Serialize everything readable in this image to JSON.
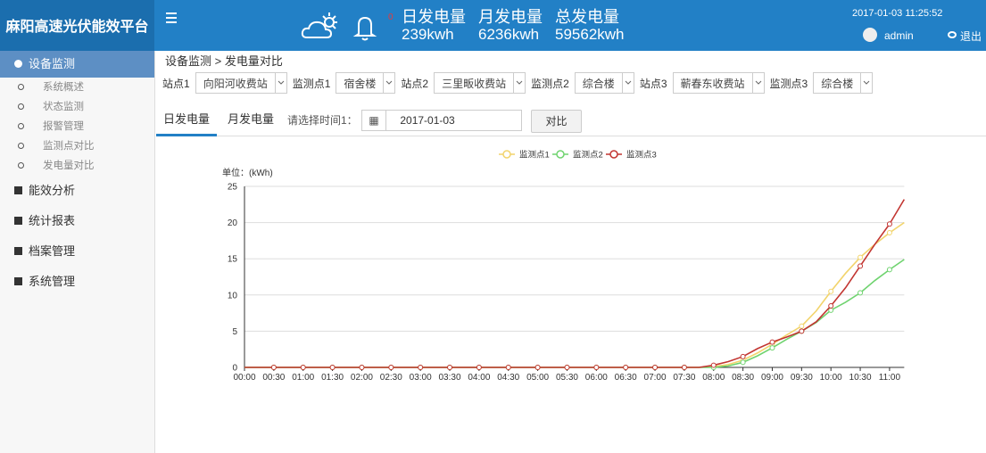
{
  "header": {
    "title": "麻阳高速光伏能效平台",
    "alert_count": "0",
    "stats": [
      {
        "label": "日发电量",
        "value": "239kwh"
      },
      {
        "label": "月发电量",
        "value": "6236kwh"
      },
      {
        "label": "总发电量",
        "value": "59562kwh"
      }
    ],
    "datetime": "2017-01-03 11:25:52",
    "user": "admin",
    "logout": "退出"
  },
  "sidebar": {
    "menu": [
      {
        "label": "设备监测",
        "children": [
          "系统概述",
          "状态监测",
          "报警管理",
          "监测点对比",
          "发电量对比"
        ]
      },
      {
        "label": "能效分析"
      },
      {
        "label": "统计报表"
      },
      {
        "label": "档案管理"
      },
      {
        "label": "系统管理"
      }
    ]
  },
  "breadcrumb": "设备监测 > 发电量对比",
  "filters": [
    {
      "label": "站点1",
      "value": "向阳河收费站"
    },
    {
      "label": "监测点1",
      "value": "宿舍楼"
    },
    {
      "label": "站点2",
      "value": "三里畈收费站"
    },
    {
      "label": "监测点2",
      "value": "综合楼"
    },
    {
      "label": "站点3",
      "value": "蕲春东收费站"
    },
    {
      "label": "监测点3",
      "value": "综合楼"
    }
  ],
  "tabs": [
    "日发电量",
    "月发电量"
  ],
  "date_label": "请选择时间1：",
  "date": "2017-01-03",
  "button": "对比",
  "chart_data": {
    "type": "line",
    "y_axis_label": "单位：(kWh)",
    "categories": [
      "00:00",
      null,
      "00:30",
      null,
      "01:00",
      null,
      "01:30",
      null,
      "02:00",
      null,
      "02:30",
      null,
      "03:00",
      null,
      "03:30",
      null,
      "04:00",
      null,
      "04:30",
      null,
      "05:00",
      null,
      "05:30",
      null,
      "06:00",
      null,
      "06:30",
      null,
      "07:00",
      null,
      "07:30",
      null,
      "08:00",
      null,
      "08:30",
      null,
      "09:00",
      null,
      "09:30",
      null,
      "10:00",
      null,
      "10:30",
      null,
      "11:00",
      null
    ],
    "series": [
      {
        "name": "监测点1",
        "color": "#f2d46c",
        "values": [
          0,
          0,
          0,
          0,
          0,
          0,
          0,
          0,
          0,
          0,
          0,
          0,
          0,
          0,
          0,
          0,
          0,
          0,
          0,
          0,
          0,
          0,
          0,
          0,
          0,
          0,
          0,
          0,
          0,
          0,
          0,
          0,
          0.1,
          0.4,
          1.0,
          2.0,
          3.2,
          4.5,
          5.7,
          7.8,
          10.5,
          13.0,
          15.2,
          17.0,
          18.6,
          20.0
        ]
      },
      {
        "name": "监测点2",
        "color": "#6fd36f",
        "values": [
          0,
          0,
          0,
          0,
          0,
          0,
          0,
          0,
          0,
          0,
          0,
          0,
          0,
          0,
          0,
          0,
          0,
          0,
          0,
          0,
          0,
          0,
          0,
          0,
          0,
          0,
          0,
          0,
          0,
          0,
          0,
          0,
          0,
          0.2,
          0.7,
          1.6,
          2.7,
          3.9,
          5.0,
          6.2,
          7.9,
          9.0,
          10.3,
          12.0,
          13.5,
          14.9
        ]
      },
      {
        "name": "监测点3",
        "color": "#c23531",
        "values": [
          0,
          0,
          0,
          0,
          0,
          0,
          0,
          0,
          0,
          0,
          0,
          0,
          0,
          0,
          0,
          0,
          0,
          0,
          0,
          0,
          0,
          0,
          0,
          0,
          0,
          0,
          0,
          0,
          0,
          0,
          0,
          0,
          0.3,
          0.8,
          1.5,
          2.6,
          3.5,
          4.2,
          5.0,
          6.3,
          8.5,
          11.0,
          14.0,
          17.0,
          19.8,
          23.2
        ]
      }
    ],
    "ylim": [
      0,
      25
    ],
    "yticks": [
      0,
      5,
      10,
      15,
      20,
      25
    ],
    "grid": true
  }
}
